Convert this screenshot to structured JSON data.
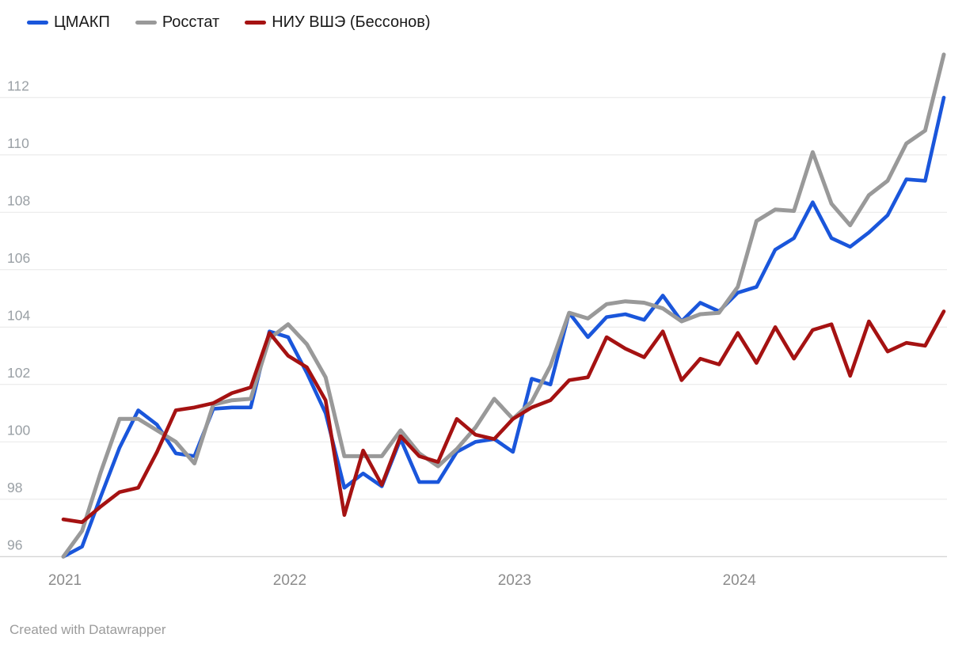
{
  "footer": {
    "credit": "Created with Datawrapper"
  },
  "chart_data": {
    "type": "line",
    "title": "",
    "x_unit": "month",
    "x_start": "2021-01",
    "x_end": "2024-12",
    "x_tick_labels": [
      "2021",
      "2022",
      "2023",
      "2024"
    ],
    "x_tick_month_index": [
      0,
      12,
      24,
      36
    ],
    "yticks": [
      96,
      98,
      100,
      102,
      104,
      106,
      108,
      110,
      112
    ],
    "ylim": [
      95,
      114
    ],
    "grid": true,
    "legend_position": "top-left",
    "series": [
      {
        "name": "ЦМАКП",
        "color": "#1a56db",
        "values": [
          96.0,
          96.35,
          98.1,
          99.8,
          101.1,
          100.6,
          99.6,
          99.5,
          101.15,
          101.2,
          101.2,
          103.85,
          103.65,
          102.4,
          101.0,
          98.4,
          98.9,
          98.45,
          100.1,
          98.6,
          98.6,
          99.65,
          100.0,
          100.1,
          99.65,
          102.2,
          102.0,
          104.5,
          103.65,
          104.35,
          104.45,
          104.25,
          105.1,
          104.2,
          104.85,
          104.55,
          105.2,
          105.4,
          106.7,
          107.1,
          108.35,
          107.1,
          106.8,
          107.3,
          107.9,
          109.15,
          109.1,
          112.0
        ]
      },
      {
        "name": "Росстат",
        "color": "#999999",
        "values": [
          96.0,
          96.9,
          98.95,
          100.8,
          100.8,
          100.4,
          100.0,
          99.25,
          101.3,
          101.45,
          101.5,
          103.6,
          104.1,
          103.4,
          102.25,
          99.5,
          99.5,
          99.5,
          100.4,
          99.6,
          99.15,
          99.75,
          100.5,
          101.5,
          100.8,
          101.4,
          102.65,
          104.5,
          104.3,
          104.8,
          104.9,
          104.85,
          104.65,
          104.2,
          104.45,
          104.5,
          105.4,
          107.7,
          108.1,
          108.05,
          110.1,
          108.3,
          107.55,
          108.6,
          109.1,
          110.4,
          110.85,
          113.5
        ]
      },
      {
        "name": "НИУ ВШЭ (Бессонов)",
        "color": "#a51212",
        "values": [
          97.3,
          97.2,
          97.75,
          98.25,
          98.4,
          99.65,
          101.1,
          101.2,
          101.35,
          101.7,
          101.9,
          103.8,
          103.0,
          102.6,
          101.45,
          97.45,
          99.7,
          98.5,
          100.2,
          99.5,
          99.3,
          100.8,
          100.25,
          100.1,
          100.8,
          101.2,
          101.45,
          102.15,
          102.25,
          103.65,
          103.25,
          102.95,
          103.85,
          102.15,
          102.9,
          102.7,
          103.8,
          102.75,
          104.0,
          102.9,
          103.9,
          104.1,
          102.3,
          104.2,
          103.15,
          103.45,
          103.35,
          104.55
        ]
      }
    ]
  }
}
